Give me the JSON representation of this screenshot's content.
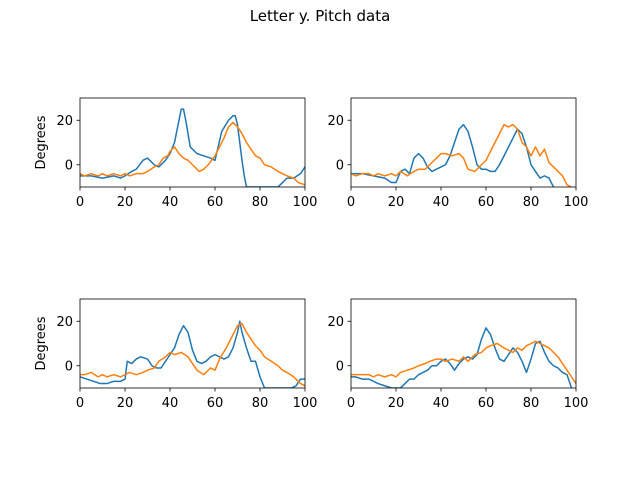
{
  "figure": {
    "title": "Letter y. Pitch data"
  },
  "chart_data": [
    {
      "type": "line",
      "ylabel": "Degrees",
      "xlim": [
        0,
        100
      ],
      "ylim": [
        -10,
        30
      ],
      "xticks": [
        0,
        20,
        40,
        60,
        80,
        100
      ],
      "yticks": [
        0,
        20
      ],
      "colors": [
        "#1f77b4",
        "#ff7f0e"
      ],
      "series": [
        {
          "x": [
            0,
            5,
            10,
            15,
            18,
            20,
            23,
            25,
            28,
            30,
            33,
            35,
            38,
            40,
            42,
            44,
            45,
            46,
            47,
            49,
            52,
            55,
            58,
            60,
            63,
            66,
            68,
            69,
            70,
            71,
            72,
            73,
            74,
            76,
            78,
            80,
            82,
            84,
            86,
            88,
            90,
            92,
            95,
            98,
            100
          ],
          "values": [
            -5,
            -5,
            -6,
            -5,
            -6,
            -5,
            -3,
            -2,
            2,
            3,
            0,
            -1,
            2,
            5,
            10,
            20,
            25,
            25,
            20,
            8,
            5,
            4,
            3,
            2,
            15,
            20,
            22,
            22,
            18,
            10,
            2,
            -5,
            -10,
            -10,
            -10,
            -10,
            -10,
            -10,
            -10,
            -10,
            -8,
            -6,
            -6,
            -4,
            -1
          ]
        },
        {
          "x": [
            0,
            2,
            5,
            8,
            10,
            12,
            15,
            18,
            20,
            22,
            25,
            28,
            30,
            33,
            35,
            37,
            39,
            40,
            42,
            44,
            46,
            48,
            50,
            53,
            55,
            57,
            60,
            62,
            64,
            66,
            68,
            70,
            72,
            74,
            76,
            78,
            80,
            82,
            85,
            88,
            90,
            92,
            95,
            97,
            100
          ],
          "values": [
            -4,
            -5,
            -4,
            -5,
            -4,
            -5,
            -4,
            -5,
            -4,
            -5,
            -4,
            -4,
            -3,
            -1,
            0,
            3,
            4,
            6,
            8,
            5,
            3,
            2,
            0,
            -3,
            -2,
            0,
            4,
            8,
            12,
            17,
            19,
            17,
            14,
            10,
            7,
            4,
            3,
            0,
            -1,
            -3,
            -4,
            -5,
            -6,
            -8,
            -9
          ]
        }
      ]
    },
    {
      "type": "line",
      "ylabel": "",
      "xlim": [
        0,
        100
      ],
      "ylim": [
        -10,
        30
      ],
      "xticks": [
        0,
        20,
        40,
        60,
        80,
        100
      ],
      "yticks": [
        0,
        20
      ],
      "colors": [
        "#1f77b4",
        "#ff7f0e"
      ],
      "series": [
        {
          "x": [
            0,
            5,
            10,
            15,
            18,
            20,
            22,
            24,
            26,
            28,
            30,
            32,
            34,
            36,
            38,
            40,
            42,
            44,
            46,
            48,
            50,
            52,
            54,
            56,
            58,
            60,
            62,
            64,
            66,
            68,
            70,
            72,
            74,
            76,
            78,
            80,
            82,
            84,
            86,
            88,
            90
          ],
          "values": [
            -4,
            -4,
            -5,
            -6,
            -8,
            -8,
            -3,
            -2,
            -4,
            3,
            5,
            3,
            -1,
            -3,
            -2,
            -1,
            0,
            4,
            10,
            16,
            18,
            15,
            8,
            0,
            -2,
            -2,
            -3,
            -3,
            0,
            4,
            8,
            12,
            16,
            14,
            8,
            0,
            -3,
            -6,
            -5,
            -6,
            -10
          ]
        },
        {
          "x": [
            0,
            2,
            5,
            8,
            10,
            12,
            15,
            18,
            20,
            22,
            25,
            28,
            30,
            33,
            35,
            38,
            40,
            42,
            45,
            48,
            50,
            52,
            55,
            58,
            60,
            62,
            64,
            66,
            68,
            70,
            72,
            74,
            76,
            78,
            80,
            82,
            84,
            86,
            88,
            90,
            92,
            94,
            96,
            98
          ],
          "values": [
            -4,
            -5,
            -4,
            -4,
            -5,
            -4,
            -5,
            -4,
            -5,
            -3,
            -5,
            -3,
            -2,
            -2,
            0,
            3,
            5,
            5,
            4,
            5,
            3,
            -2,
            -3,
            0,
            2,
            6,
            10,
            14,
            18,
            17,
            18,
            16,
            10,
            8,
            4,
            8,
            4,
            7,
            1,
            -1,
            -3,
            -5,
            -9,
            -10
          ]
        }
      ]
    },
    {
      "type": "line",
      "ylabel": "Degrees",
      "xlim": [
        0,
        100
      ],
      "ylim": [
        -10,
        30
      ],
      "xticks": [
        0,
        20,
        40,
        60,
        80,
        100
      ],
      "yticks": [
        0,
        20
      ],
      "colors": [
        "#1f77b4",
        "#ff7f0e"
      ],
      "series": [
        {
          "x": [
            0,
            3,
            6,
            9,
            12,
            15,
            18,
            20,
            21,
            23,
            25,
            27,
            30,
            32,
            34,
            36,
            38,
            40,
            42,
            44,
            46,
            48,
            50,
            52,
            54,
            56,
            58,
            60,
            62,
            64,
            66,
            68,
            70,
            71,
            72,
            74,
            76,
            78,
            80,
            82,
            84,
            86,
            88,
            90,
            92,
            94,
            96,
            98,
            100
          ],
          "values": [
            -5,
            -6,
            -7,
            -8,
            -8,
            -7,
            -7,
            -6,
            2,
            1,
            3,
            4,
            3,
            0,
            -1,
            -1,
            2,
            5,
            8,
            14,
            18,
            15,
            7,
            2,
            1,
            2,
            4,
            5,
            4,
            3,
            4,
            8,
            15,
            20,
            15,
            8,
            2,
            2,
            -5,
            -10,
            -10,
            -10,
            -10,
            -10,
            -10,
            -10,
            -9,
            -6,
            -6
          ]
        },
        {
          "x": [
            0,
            2,
            5,
            8,
            10,
            12,
            15,
            18,
            20,
            22,
            25,
            28,
            30,
            33,
            35,
            38,
            40,
            42,
            45,
            48,
            50,
            52,
            55,
            58,
            60,
            62,
            65,
            68,
            70,
            72,
            74,
            76,
            78,
            80,
            82,
            85,
            88,
            90,
            92,
            95,
            98,
            100
          ],
          "values": [
            -4,
            -4,
            -3,
            -5,
            -4,
            -5,
            -4,
            -5,
            -4,
            -3,
            -4,
            -3,
            -2,
            -1,
            2,
            4,
            6,
            5,
            6,
            4,
            1,
            -2,
            -4,
            -1,
            -2,
            3,
            8,
            14,
            18,
            19,
            15,
            12,
            9,
            7,
            4,
            2,
            0,
            -2,
            -3,
            -5,
            -8,
            -9
          ]
        }
      ]
    },
    {
      "type": "line",
      "ylabel": "",
      "xlim": [
        0,
        100
      ],
      "ylim": [
        -10,
        30
      ],
      "xticks": [
        0,
        20,
        40,
        60,
        80,
        100
      ],
      "yticks": [
        0,
        20
      ],
      "colors": [
        "#1f77b4",
        "#ff7f0e"
      ],
      "series": [
        {
          "x": [
            0,
            2,
            5,
            8,
            10,
            12,
            15,
            18,
            20,
            22,
            24,
            26,
            28,
            30,
            32,
            34,
            36,
            38,
            40,
            42,
            44,
            46,
            48,
            50,
            52,
            54,
            56,
            58,
            60,
            62,
            64,
            66,
            68,
            70,
            72,
            74,
            76,
            78,
            80,
            82,
            84,
            86,
            88,
            90,
            92,
            94,
            96,
            98
          ],
          "values": [
            -5,
            -5,
            -6,
            -6,
            -7,
            -8,
            -9,
            -10,
            -10,
            -10,
            -8,
            -6,
            -6,
            -4,
            -3,
            -2,
            0,
            0,
            2,
            3,
            1,
            -2,
            1,
            3,
            4,
            3,
            5,
            12,
            17,
            14,
            8,
            3,
            2,
            5,
            8,
            6,
            2,
            -3,
            3,
            10,
            11,
            6,
            2,
            0,
            -1,
            -3,
            -4,
            -10
          ]
        },
        {
          "x": [
            0,
            2,
            5,
            8,
            10,
            12,
            15,
            18,
            20,
            22,
            25,
            28,
            30,
            33,
            35,
            38,
            40,
            42,
            45,
            48,
            50,
            52,
            55,
            58,
            60,
            62,
            65,
            68,
            70,
            72,
            74,
            76,
            78,
            80,
            82,
            84,
            86,
            88,
            90,
            92,
            94,
            96,
            98,
            100
          ],
          "values": [
            -4,
            -4,
            -4,
            -4,
            -5,
            -4,
            -5,
            -4,
            -5,
            -3,
            -2,
            -1,
            0,
            1,
            2,
            3,
            3,
            2,
            3,
            2,
            4,
            2,
            5,
            6,
            8,
            9,
            10,
            8,
            7,
            6,
            8,
            7,
            9,
            10,
            11,
            10,
            9,
            8,
            6,
            4,
            1,
            -2,
            -5,
            -8
          ]
        }
      ]
    }
  ]
}
